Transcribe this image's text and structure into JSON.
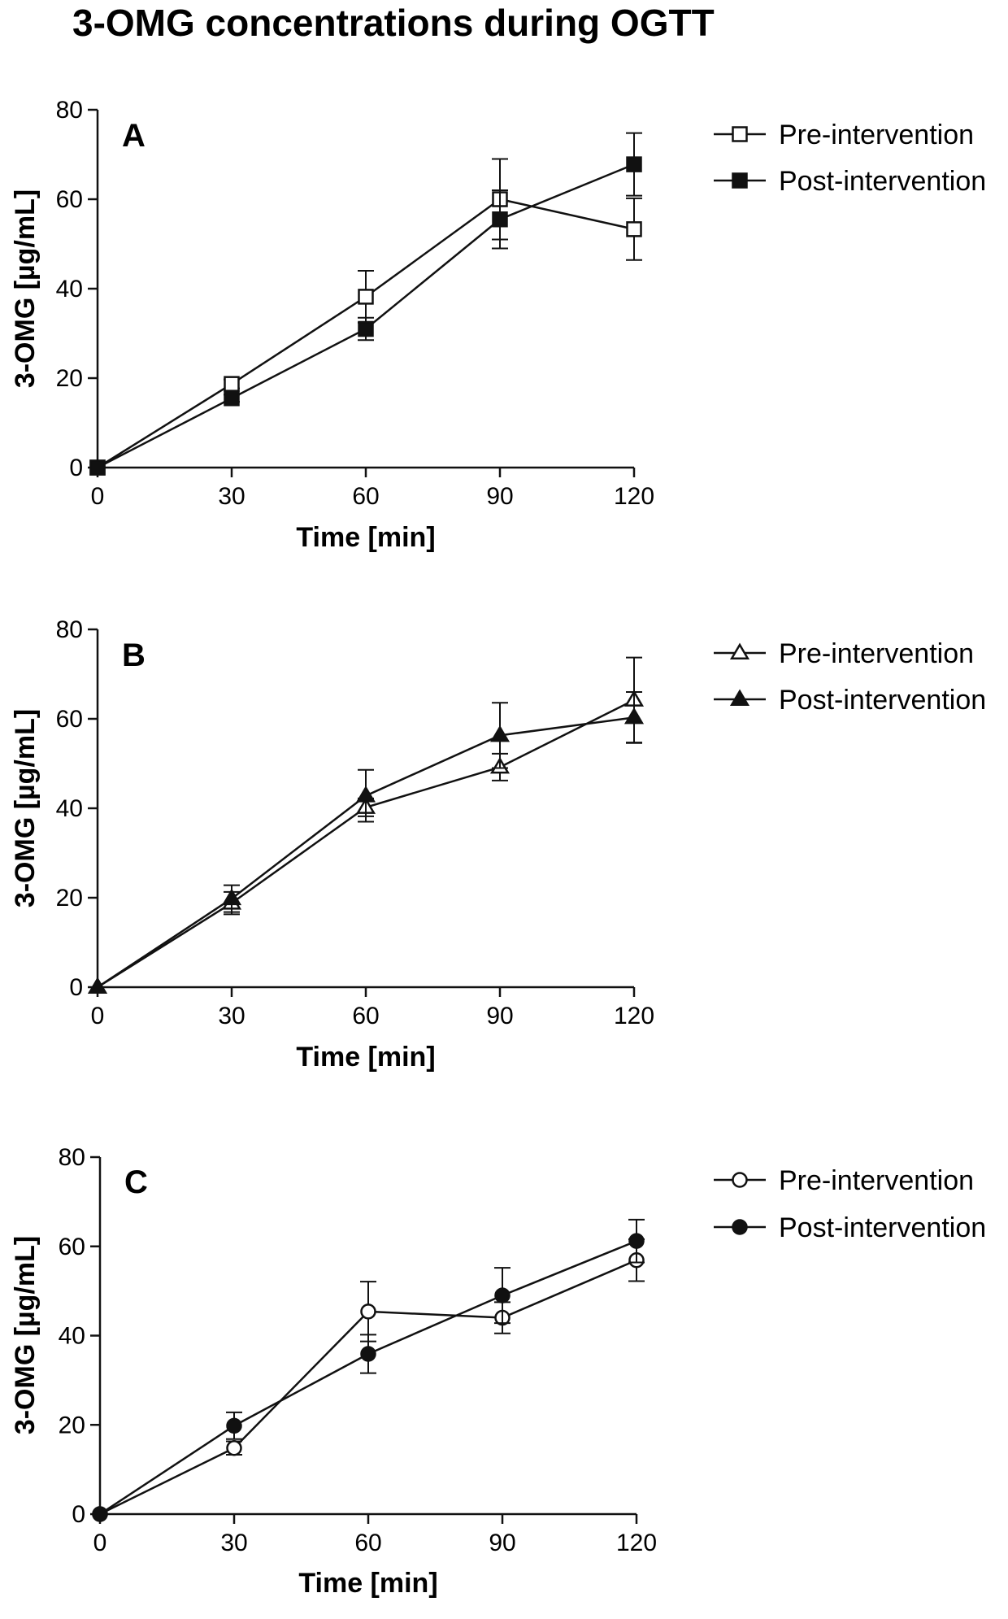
{
  "figure_title": "3-OMG concentrations during OGTT",
  "chart_data": [
    {
      "type": "line",
      "panel": "A",
      "marker": "square",
      "title": "",
      "xlabel": "Time [min]",
      "ylabel": "3-OMG [µg/mL]",
      "xlim": [
        0,
        120
      ],
      "ylim": [
        0,
        80
      ],
      "xticks": [
        "0",
        "30",
        "60",
        "90",
        "120"
      ],
      "yticks": [
        "0",
        "20",
        "40",
        "60",
        "80"
      ],
      "grid": false,
      "legend_position": "right",
      "x": [
        0,
        30,
        60,
        90,
        120
      ],
      "series": [
        {
          "name": "Pre-intervention",
          "filled": false,
          "values": [
            0,
            18.7,
            38.2,
            60.0,
            53.3
          ],
          "error": [
            0,
            1.0,
            5.8,
            9.0,
            6.9
          ]
        },
        {
          "name": "Post-intervention",
          "filled": true,
          "values": [
            0,
            15.5,
            31.0,
            55.5,
            67.8
          ],
          "error": [
            0,
            0.8,
            2.5,
            6.5,
            7.0
          ]
        }
      ]
    },
    {
      "type": "line",
      "panel": "B",
      "marker": "triangle",
      "title": "",
      "xlabel": "Time [min]",
      "ylabel": "3-OMG [µg/mL]",
      "xlim": [
        0,
        120
      ],
      "ylim": [
        0,
        80
      ],
      "xticks": [
        "0",
        "30",
        "60",
        "90",
        "120"
      ],
      "yticks": [
        "0",
        "20",
        "40",
        "60",
        "80"
      ],
      "grid": false,
      "legend_position": "right",
      "x": [
        0,
        30,
        60,
        90,
        120
      ],
      "series": [
        {
          "name": "Pre-intervention",
          "filled": false,
          "values": [
            0,
            18.8,
            40.2,
            49.2,
            64.2
          ],
          "error": [
            0,
            2.5,
            2.0,
            3.0,
            9.5
          ]
        },
        {
          "name": "Post-intervention",
          "filled": true,
          "values": [
            0,
            19.8,
            42.8,
            56.3,
            60.3
          ],
          "error": [
            0,
            3.0,
            5.8,
            7.3,
            5.7
          ]
        }
      ]
    },
    {
      "type": "line",
      "panel": "C",
      "marker": "circle",
      "title": "",
      "xlabel": "Time [min]",
      "ylabel": "3-OMG [µg/mL]",
      "xlim": [
        0,
        120
      ],
      "ylim": [
        0,
        80
      ],
      "xticks": [
        "0",
        "30",
        "60",
        "90",
        "120"
      ],
      "yticks": [
        "0",
        "20",
        "40",
        "60",
        "80"
      ],
      "grid": false,
      "legend_position": "right",
      "x": [
        0,
        30,
        60,
        90,
        120
      ],
      "series": [
        {
          "name": "Pre-intervention",
          "filled": false,
          "values": [
            0,
            14.8,
            45.4,
            44.0,
            56.9
          ],
          "error": [
            0,
            1.5,
            6.7,
            3.5,
            4.7
          ]
        },
        {
          "name": "Post-intervention",
          "filled": true,
          "values": [
            0,
            19.8,
            35.9,
            49.0,
            61.2
          ],
          "error": [
            0,
            3.0,
            4.3,
            6.2,
            4.8
          ]
        }
      ]
    }
  ]
}
